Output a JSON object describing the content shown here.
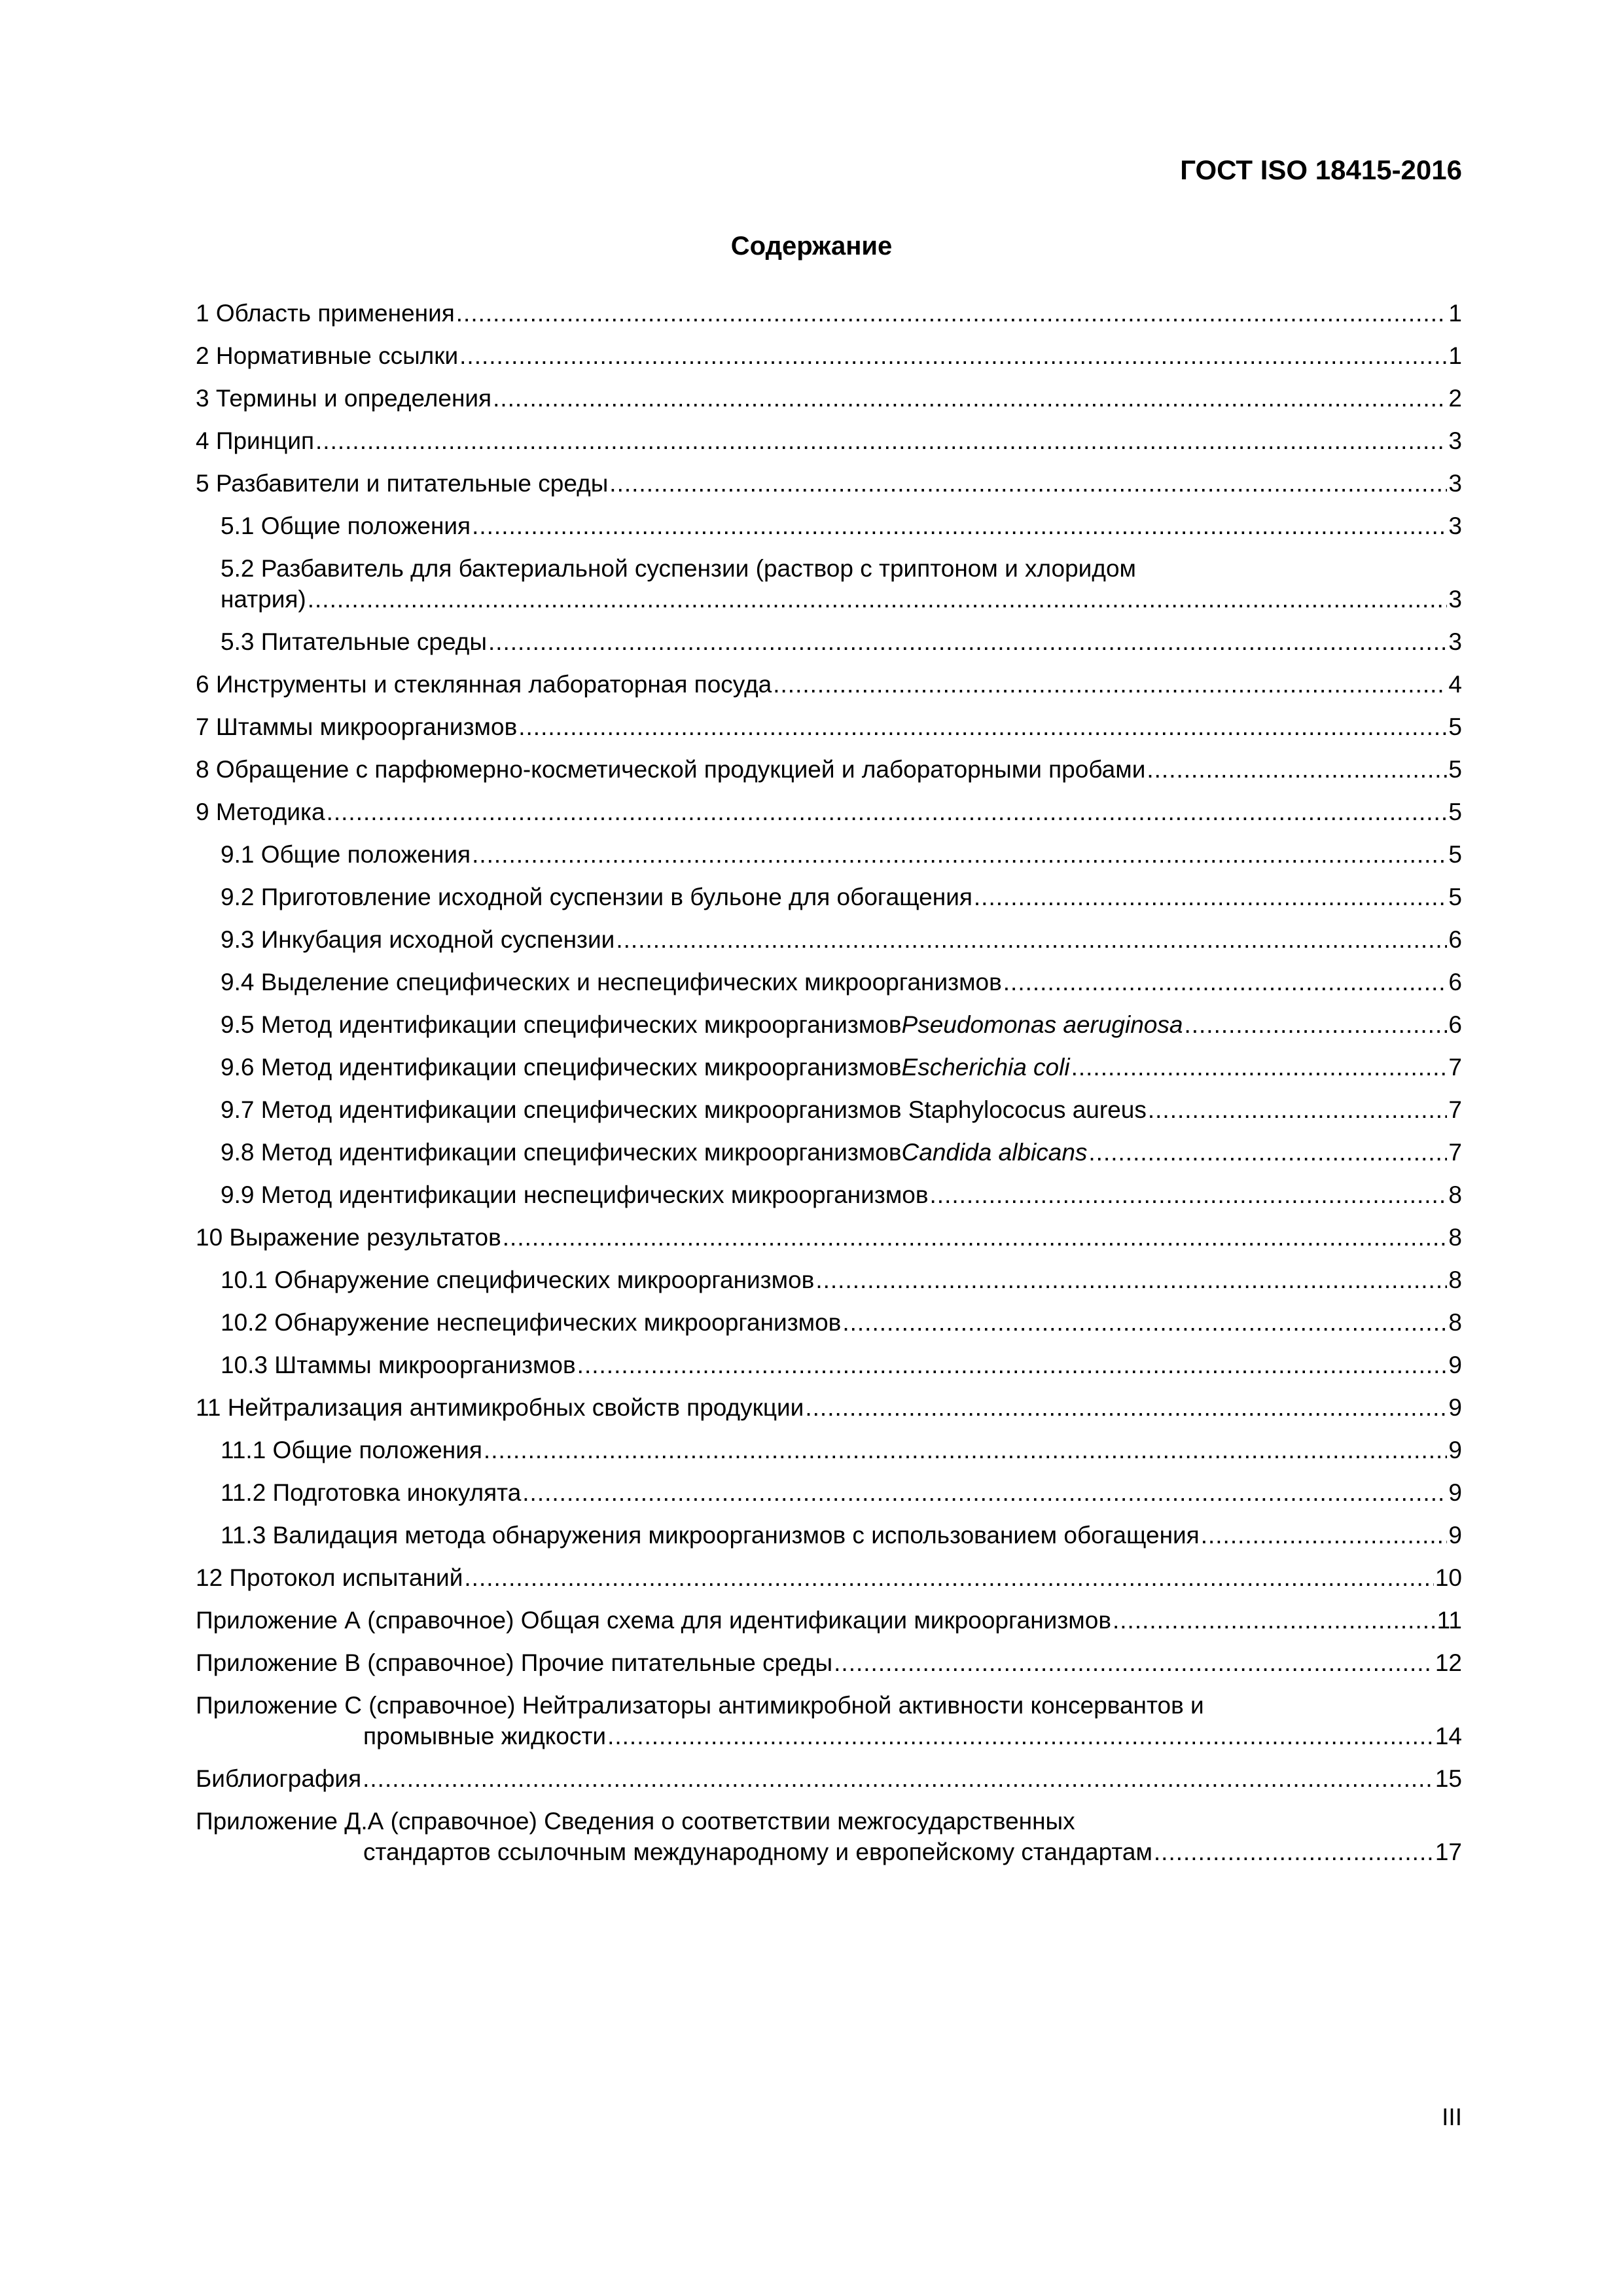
{
  "header": {
    "doc_id": "ГОСТ ISO 18415-2016"
  },
  "title": "Содержание",
  "toc": [
    {
      "level": 1,
      "text": "1 Область применения",
      "page": "1"
    },
    {
      "level": 1,
      "text": "2 Нормативные ссылки",
      "page": "1"
    },
    {
      "level": 1,
      "text": "3 Термины и определения",
      "page": "2"
    },
    {
      "level": 1,
      "text": "4 Принцип",
      "page": "3"
    },
    {
      "level": 1,
      "text": "5 Разбавители и питательные среды",
      "page": "3"
    },
    {
      "level": 2,
      "text": "5.1 Общие положения",
      "page": "3"
    },
    {
      "level": 2,
      "text": "5.2 Разбавитель для бактериальной суспензии (раствор с триптоном и хлоридом",
      "cont": "натрия)",
      "page": "3"
    },
    {
      "level": 2,
      "text": "5.3 Питательные среды",
      "page": "3"
    },
    {
      "level": 1,
      "text": "6 Инструменты и стеклянная лабораторная посуда",
      "page": "4"
    },
    {
      "level": 1,
      "text": "7 Штаммы микроорганизмов",
      "page": "5"
    },
    {
      "level": 1,
      "text": "8 Обращение с парфюмерно-косметической продукцией и лабораторными пробами",
      "page": "5"
    },
    {
      "level": 1,
      "text": "9 Методика",
      "page": "5"
    },
    {
      "level": 2,
      "text": "9.1 Общие положения",
      "page": "5"
    },
    {
      "level": 2,
      "text": "9.2 Приготовление исходной суспензии в бульоне для обогащения",
      "page": "5"
    },
    {
      "level": 2,
      "text": "9.3 Инкубация исходной суспензии",
      "page": "6"
    },
    {
      "level": 2,
      "text": "9.4 Выделение специфических и неспецифических микроорганизмов",
      "page": "6"
    },
    {
      "level": 2,
      "text": "9.5 Метод идентификации специфических микроорганизмов ",
      "italic": "Pseudomonas aeruginosa",
      "page": "6"
    },
    {
      "level": 2,
      "text": "9.6 Метод идентификации специфических микроорганизмов ",
      "italic": "Escherichia coli",
      "page": "7"
    },
    {
      "level": 2,
      "text": "9.7 Метод идентификации специфических микроорганизмов Staphylococus aureus",
      "page": "7"
    },
    {
      "level": 2,
      "text": "9.8 Метод идентификации специфических микроорганизмов ",
      "italic": "Candida albicans",
      "page": "7"
    },
    {
      "level": 2,
      "text": "9.9 Метод идентификации неспецифических микроорганизмов",
      "page": "8"
    },
    {
      "level": 1,
      "text": "10 Выражение результатов",
      "page": "8"
    },
    {
      "level": 2,
      "text": "10.1 Обнаружение специфических микроорганизмов",
      "page": "8"
    },
    {
      "level": 2,
      "text": "10.2 Обнаружение неспецифических микроорганизмов",
      "page": "8"
    },
    {
      "level": 2,
      "text": "10.3 Штаммы микроорганизмов",
      "page": "9"
    },
    {
      "level": 1,
      "text": "11 Нейтрализация антимикробных свойств продукции",
      "page": "9"
    },
    {
      "level": 2,
      "text": "11.1 Общие положения",
      "page": "9"
    },
    {
      "level": 2,
      "text": "11.2 Подготовка инокулята",
      "page": "9"
    },
    {
      "level": 2,
      "text": "11.3 Валидация метода обнаружения микроорганизмов с использованием обогащения",
      "page": "9"
    },
    {
      "level": 1,
      "text": "12 Протокол испытаний",
      "page": "10"
    },
    {
      "level": 1,
      "appendix": true,
      "text": "Приложение А (справочное)  Общая схема для идентификации микроорганизмов",
      "page": "11"
    },
    {
      "level": 1,
      "appendix": true,
      "text": "Приложение В (справочное)  Прочие питательные среды",
      "page": "12"
    },
    {
      "level": 1,
      "appendix": true,
      "text": "Приложение С (справочное)  Нейтрализаторы антимикробной активности консервантов и",
      "cont": "промывные жидкости",
      "page": "14"
    },
    {
      "level": 1,
      "text": "Библиография",
      "page": "15"
    },
    {
      "level": 1,
      "appendix": true,
      "text": "Приложение Д.А (справочное)  Сведения о соответствии межгосударственных",
      "cont": "стандартов ссылочным международному и европейскому стандартам",
      "page": "17"
    }
  ],
  "footer": {
    "page_number": "III"
  }
}
